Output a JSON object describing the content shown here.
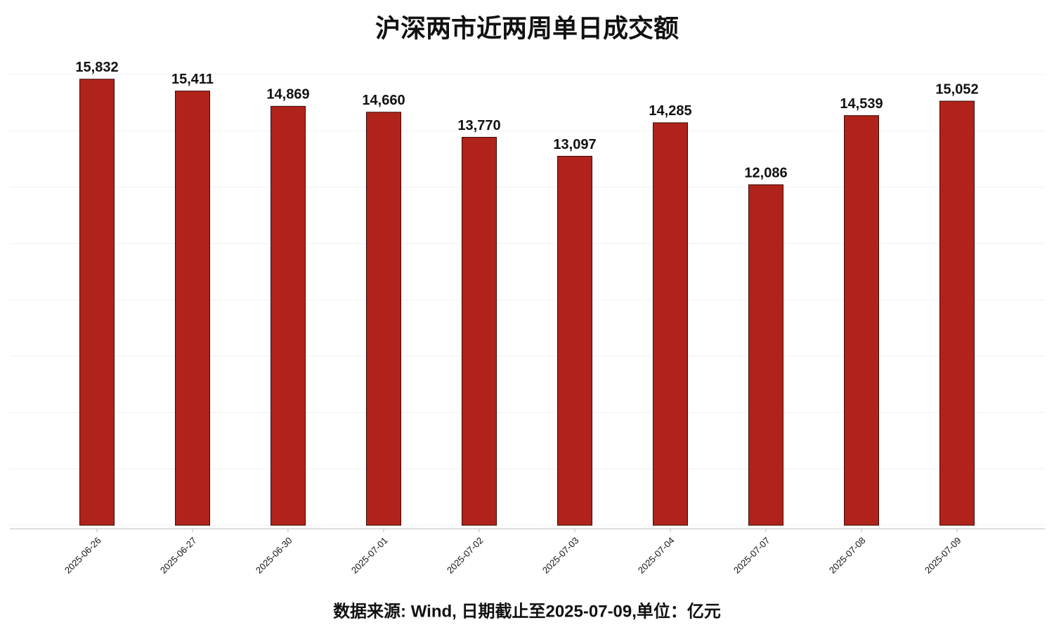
{
  "chart_data": {
    "type": "bar",
    "title": "沪深两市近两周单日成交额",
    "footer": "数据来源: Wind, 日期截止至2025-07-09,单位：亿元",
    "categories": [
      "2025-06-26",
      "2025-06-27",
      "2025-06-30",
      "2025-07-01",
      "2025-07-02",
      "2025-07-03",
      "2025-07-04",
      "2025-07-07",
      "2025-07-08",
      "2025-07-09"
    ],
    "values": [
      15832,
      15411,
      14869,
      14660,
      13770,
      13097,
      14285,
      12086,
      14539,
      15052
    ],
    "value_labels": [
      "15,832",
      "15,411",
      "14,869",
      "14,660",
      "13,770",
      "13,097",
      "14,285",
      "12,086",
      "14,539",
      "15,052"
    ],
    "color": "#b0231a",
    "ylim": [
      0,
      16000
    ],
    "yticks": [
      0,
      2000,
      4000,
      6000,
      8000,
      10000,
      12000,
      14000,
      16000
    ],
    "grid": true
  }
}
